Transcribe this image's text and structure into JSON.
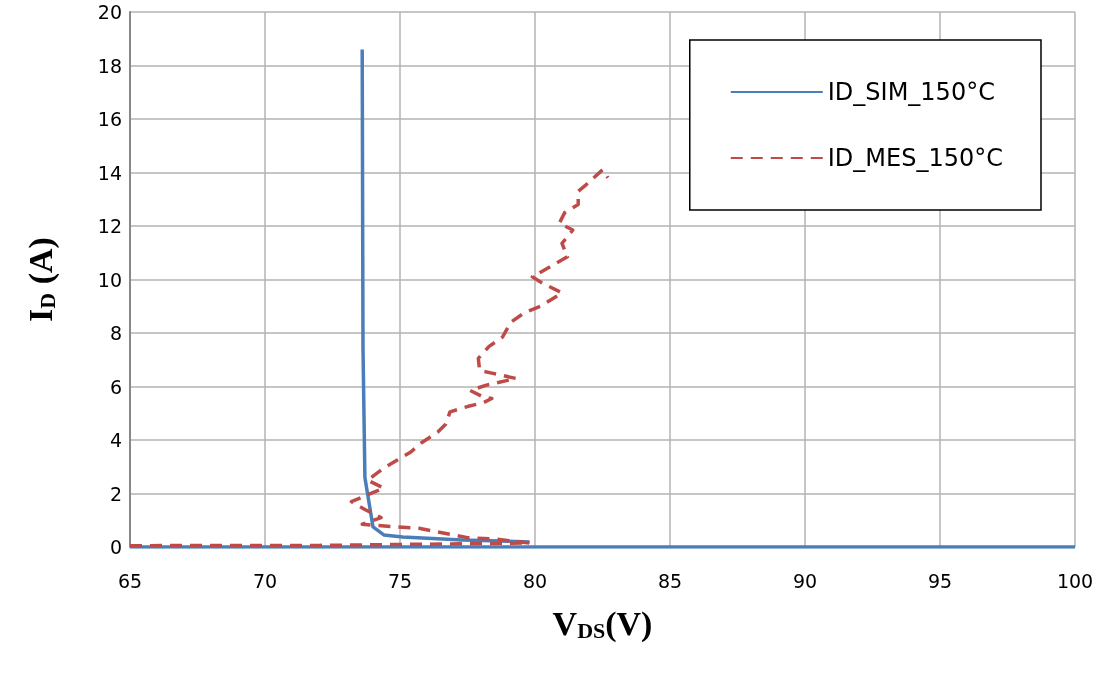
{
  "chart_data": {
    "type": "line",
    "xlabel": "V$_{DS}$(V)",
    "ylabel": "I$_{D}$ (A)",
    "xlim": [
      65,
      100
    ],
    "xticks": [
      65,
      70,
      75,
      80,
      85,
      90,
      95,
      100
    ],
    "ylim": [
      0,
      20
    ],
    "yticks": [
      0,
      2,
      4,
      6,
      8,
      10,
      12,
      14,
      16,
      18,
      20
    ],
    "grid": true,
    "legend": "top right",
    "marker": "none",
    "series": [
      {
        "name": "ID_SIM_150°C",
        "color": "#4a7ebb",
        "line_style": "solid",
        "x": [
          100,
          90,
          80,
          70,
          65,
          null,
          79.8,
          77.3,
          75.1,
          74.4,
          74.0,
          73.7,
          73.63,
          73.6
        ],
        "values": [
          0,
          0,
          0,
          0,
          0,
          null,
          0.19,
          0.26,
          0.37,
          0.45,
          0.75,
          2.6,
          7.4,
          18.6
        ]
      },
      {
        "name": "ID_MES_150°C",
        "color": "#be4b48",
        "line_style": "dashed",
        "x": [
          65,
          72,
          79.8,
          78.5,
          77.5,
          75.7,
          74.9,
          73.6,
          74.3,
          73.7,
          73.2,
          74.4,
          73.8,
          74.4,
          74.9,
          75.4,
          75.8,
          76.4,
          76.7,
          76.85,
          77.5,
          78.1,
          78.4,
          78.1,
          77.6,
          78.2,
          79.3,
          78.4,
          77.95,
          77.9,
          78.3,
          78.8,
          79.1,
          79.6,
          80.2,
          81.0,
          80.3,
          79.9,
          80.6,
          81.2,
          81.0,
          81.4,
          80.9,
          81.1,
          81.6,
          81.6,
          81.9,
          82.5,
          82.7
        ],
        "values": [
          0.05,
          0.06,
          0.15,
          0.3,
          0.35,
          0.7,
          0.75,
          0.85,
          1.1,
          1.4,
          1.7,
          2.2,
          2.5,
          2.95,
          3.25,
          3.55,
          3.9,
          4.3,
          4.6,
          5.05,
          5.25,
          5.4,
          5.55,
          5.6,
          5.85,
          6.05,
          6.3,
          6.5,
          6.6,
          7.05,
          7.5,
          7.85,
          8.4,
          8.75,
          9.0,
          9.5,
          9.85,
          10.1,
          10.5,
          10.85,
          11.35,
          11.85,
          12.1,
          12.5,
          12.8,
          13.3,
          13.55,
          14.1,
          13.8
        ]
      }
    ]
  }
}
